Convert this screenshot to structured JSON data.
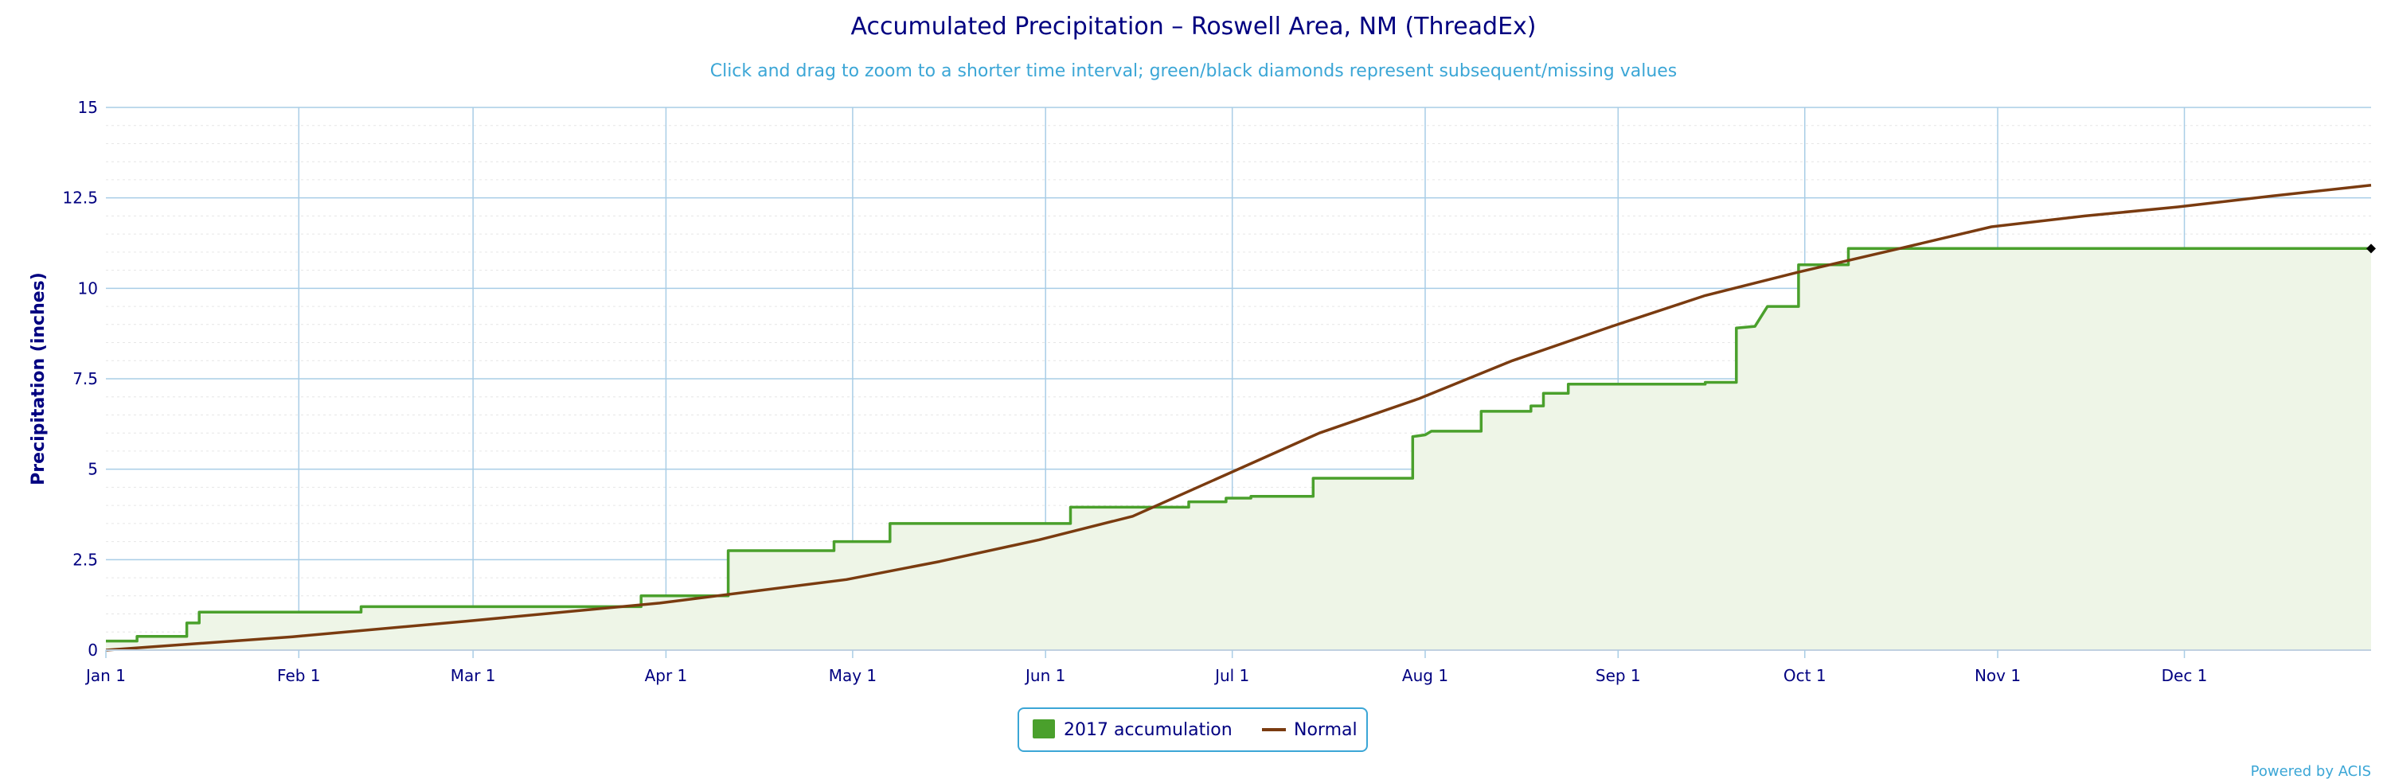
{
  "chart_data": {
    "type": "area",
    "title": "Accumulated Precipitation – Roswell Area, NM (ThreadEx)",
    "subtitle": "Click and drag to zoom to a shorter time interval; green/black diamonds represent subsequent/missing values",
    "xlabel": "",
    "ylabel": "Precipitation (inches)",
    "ylim": [
      0,
      15
    ],
    "xlim": [
      "Jan 1",
      "Dec 31"
    ],
    "y_ticks": [
      "0",
      "2.5",
      "5",
      "7.5",
      "10",
      "12.5",
      "15"
    ],
    "y_tick_values": [
      0,
      2.5,
      5,
      7.5,
      10,
      12.5,
      15
    ],
    "x_ticks": [
      "Jan 1",
      "Feb 1",
      "Mar 1",
      "Apr 1",
      "May 1",
      "Jun 1",
      "Jul 1",
      "Aug 1",
      "Sep 1",
      "Oct 1",
      "Nov 1",
      "Dec 1"
    ],
    "x_tick_days": [
      1,
      32,
      60,
      91,
      121,
      152,
      182,
      213,
      244,
      274,
      305,
      335
    ],
    "grid": true,
    "legend_position": "bottom-center",
    "series": [
      {
        "name": "2017 accumulation",
        "color": "#4AA02C",
        "fill": "#EEF5E7",
        "style": "step-area",
        "points": [
          [
            "Jan 1",
            0.25
          ],
          [
            "Jan 6",
            0.25
          ],
          [
            "Jan 6",
            0.38
          ],
          [
            "Jan 14",
            0.38
          ],
          [
            "Jan 14",
            0.75
          ],
          [
            "Jan 16",
            0.75
          ],
          [
            "Jan 16",
            1.05
          ],
          [
            "Feb 11",
            1.05
          ],
          [
            "Feb 11",
            1.2
          ],
          [
            "Mar 28",
            1.2
          ],
          [
            "Mar 28",
            1.5
          ],
          [
            "Apr 11",
            1.5
          ],
          [
            "Apr 11",
            2.75
          ],
          [
            "Apr 28",
            2.75
          ],
          [
            "Apr 28",
            3.0
          ],
          [
            "May 7",
            3.0
          ],
          [
            "May 7",
            3.5
          ],
          [
            "Jun 5",
            3.5
          ],
          [
            "Jun 5",
            3.95
          ],
          [
            "Jun 24",
            3.95
          ],
          [
            "Jun 24",
            4.1
          ],
          [
            "Jun 30",
            4.1
          ],
          [
            "Jun 30",
            4.2
          ],
          [
            "Jul 4",
            4.2
          ],
          [
            "Jul 4",
            4.25
          ],
          [
            "Jul 14",
            4.25
          ],
          [
            "Jul 14",
            4.75
          ],
          [
            "Jul 30",
            4.75
          ],
          [
            "Jul 30",
            5.9
          ],
          [
            "Aug 1",
            5.95
          ],
          [
            "Aug 2",
            6.05
          ],
          [
            "Aug 10",
            6.05
          ],
          [
            "Aug 10",
            6.6
          ],
          [
            "Aug 18",
            6.6
          ],
          [
            "Aug 18",
            6.75
          ],
          [
            "Aug 20",
            6.75
          ],
          [
            "Aug 20",
            7.1
          ],
          [
            "Aug 24",
            7.1
          ],
          [
            "Aug 24",
            7.35
          ],
          [
            "Sep 15",
            7.35
          ],
          [
            "Sep 15",
            7.4
          ],
          [
            "Sep 20",
            7.4
          ],
          [
            "Sep 20",
            8.9
          ],
          [
            "Sep 23",
            8.95
          ],
          [
            "Sep 25",
            9.5
          ],
          [
            "Sep 30",
            9.5
          ],
          [
            "Sep 30",
            10.65
          ],
          [
            "Oct 8",
            10.65
          ],
          [
            "Oct 8",
            11.1
          ],
          [
            "Dec 31",
            11.1
          ]
        ]
      },
      {
        "name": "Normal",
        "color": "#7A3B10",
        "style": "line",
        "points": [
          [
            "Jan 1",
            0.0
          ],
          [
            "Jan 31",
            0.37
          ],
          [
            "Feb 28",
            0.8
          ],
          [
            "Mar 31",
            1.3
          ],
          [
            "Apr 30",
            1.95
          ],
          [
            "May 15",
            2.45
          ],
          [
            "May 31",
            3.05
          ],
          [
            "Jun 15",
            3.7
          ],
          [
            "Jun 30",
            4.85
          ],
          [
            "Jul 15",
            6.0
          ],
          [
            "Jul 31",
            6.95
          ],
          [
            "Aug 15",
            8.0
          ],
          [
            "Aug 31",
            8.95
          ],
          [
            "Sep 15",
            9.8
          ],
          [
            "Sep 30",
            10.45
          ],
          [
            "Oct 15",
            11.05
          ],
          [
            "Oct 31",
            11.7
          ],
          [
            "Nov 15",
            12.0
          ],
          [
            "Nov 30",
            12.25
          ],
          [
            "Dec 15",
            12.55
          ],
          [
            "Dec 31",
            12.85
          ]
        ]
      }
    ],
    "markers": [
      {
        "at": "Dec 31",
        "value": 11.1,
        "shape": "diamond",
        "color": "#000000"
      }
    ]
  },
  "legend": {
    "items": [
      {
        "label": "2017 accumulation",
        "color": "#4AA02C",
        "symbol": "square"
      },
      {
        "label": "Normal",
        "color": "#7A3B10",
        "symbol": "line"
      }
    ]
  },
  "credits": "Powered by ACIS"
}
